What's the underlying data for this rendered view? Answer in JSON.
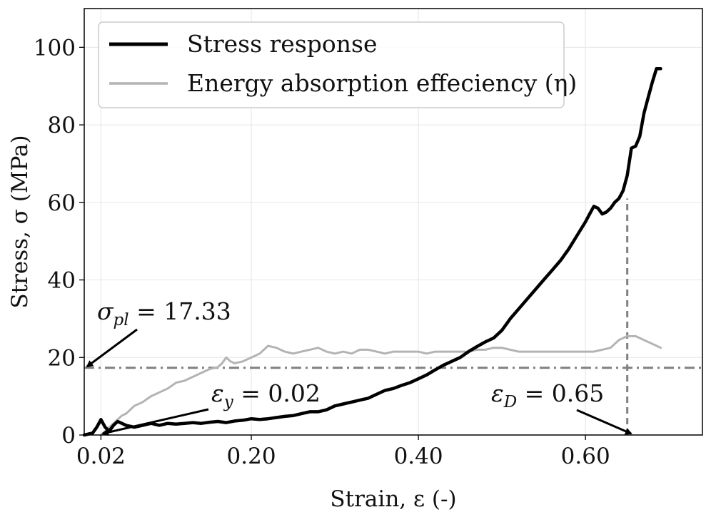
{
  "chart_data": {
    "type": "line",
    "xlabel": "Strain, ε (-)",
    "ylabel": "Stress, σ (MPa)",
    "xlim": [
      0.0,
      0.74
    ],
    "ylim": [
      0,
      110
    ],
    "x_ticks": [
      0.02,
      0.2,
      0.4,
      0.6
    ],
    "x_tick_labels": [
      "0.02",
      "0.20",
      "0.40",
      "0.60"
    ],
    "y_ticks": [
      0,
      20,
      40,
      60,
      80,
      100
    ],
    "y_tick_labels": [
      "0",
      "20",
      "40",
      "60",
      "80",
      "100"
    ],
    "grid": true,
    "legend": {
      "position": "top-left"
    },
    "series": [
      {
        "name": "Stress response",
        "color": "#000000",
        "x": [
          0.0,
          0.01,
          0.015,
          0.02,
          0.025,
          0.03,
          0.035,
          0.04,
          0.045,
          0.05,
          0.06,
          0.07,
          0.08,
          0.09,
          0.1,
          0.11,
          0.12,
          0.13,
          0.14,
          0.15,
          0.16,
          0.17,
          0.18,
          0.19,
          0.2,
          0.21,
          0.22,
          0.23,
          0.24,
          0.25,
          0.26,
          0.27,
          0.28,
          0.29,
          0.3,
          0.31,
          0.32,
          0.33,
          0.34,
          0.35,
          0.36,
          0.37,
          0.38,
          0.39,
          0.4,
          0.41,
          0.42,
          0.43,
          0.44,
          0.45,
          0.46,
          0.47,
          0.48,
          0.49,
          0.5,
          0.51,
          0.52,
          0.53,
          0.54,
          0.55,
          0.56,
          0.57,
          0.58,
          0.59,
          0.6,
          0.605,
          0.61,
          0.615,
          0.62,
          0.625,
          0.63,
          0.635,
          0.64,
          0.645,
          0.65,
          0.655,
          0.66,
          0.665,
          0.67,
          0.675,
          0.68,
          0.685,
          0.69
        ],
        "values": [
          0.0,
          0.5,
          2.0,
          4.0,
          2.0,
          1.0,
          2.5,
          3.5,
          3.0,
          2.5,
          2.0,
          2.5,
          3.0,
          2.5,
          3.0,
          2.8,
          3.0,
          3.2,
          3.0,
          3.3,
          3.5,
          3.2,
          3.6,
          3.8,
          4.2,
          4.0,
          4.2,
          4.5,
          4.8,
          5.0,
          5.5,
          6.0,
          6.0,
          6.5,
          7.5,
          8.0,
          8.5,
          9.0,
          9.5,
          10.5,
          11.5,
          12.0,
          12.8,
          13.5,
          14.5,
          15.5,
          16.8,
          18.0,
          19.0,
          20.0,
          21.5,
          22.8,
          24.0,
          25.0,
          27.0,
          30.0,
          32.5,
          35.0,
          37.5,
          40.0,
          42.5,
          45.0,
          48.0,
          51.5,
          55.0,
          57.0,
          59.0,
          58.5,
          57.0,
          57.5,
          58.5,
          60.0,
          61.0,
          63.0,
          67.0,
          74.0,
          74.5,
          77.0,
          83.0,
          87.0,
          91.0,
          94.5,
          94.5
        ]
      },
      {
        "name": "Energy absorption effeciency (η)",
        "color": "#b3b3b3",
        "x": [
          0.02,
          0.025,
          0.03,
          0.035,
          0.04,
          0.045,
          0.05,
          0.055,
          0.06,
          0.07,
          0.08,
          0.09,
          0.1,
          0.11,
          0.12,
          0.13,
          0.14,
          0.15,
          0.16,
          0.165,
          0.17,
          0.175,
          0.18,
          0.19,
          0.2,
          0.21,
          0.22,
          0.23,
          0.24,
          0.25,
          0.26,
          0.27,
          0.28,
          0.29,
          0.3,
          0.31,
          0.32,
          0.33,
          0.34,
          0.35,
          0.36,
          0.37,
          0.38,
          0.39,
          0.4,
          0.41,
          0.42,
          0.43,
          0.44,
          0.45,
          0.46,
          0.47,
          0.48,
          0.49,
          0.5,
          0.51,
          0.52,
          0.53,
          0.54,
          0.55,
          0.56,
          0.57,
          0.58,
          0.59,
          0.6,
          0.61,
          0.62,
          0.63,
          0.64,
          0.65,
          0.66,
          0.67,
          0.68,
          0.69
        ],
        "values": [
          0.0,
          1.0,
          2.0,
          3.0,
          4.0,
          5.0,
          5.5,
          6.5,
          7.5,
          8.5,
          10.0,
          11.0,
          12.0,
          13.5,
          14.0,
          15.0,
          16.0,
          17.0,
          17.5,
          18.5,
          20.0,
          19.0,
          18.5,
          19.0,
          20.0,
          21.0,
          23.0,
          22.5,
          21.5,
          21.0,
          21.5,
          22.0,
          22.5,
          21.5,
          21.0,
          21.5,
          21.0,
          22.0,
          22.0,
          21.5,
          21.0,
          21.5,
          21.5,
          21.5,
          21.5,
          21.0,
          21.5,
          21.5,
          21.5,
          21.5,
          21.5,
          22.0,
          22.0,
          22.5,
          22.5,
          22.0,
          21.5,
          21.5,
          21.5,
          21.5,
          21.5,
          21.5,
          21.5,
          21.5,
          21.5,
          21.5,
          22.0,
          22.5,
          24.5,
          25.5,
          25.5,
          24.5,
          23.5,
          22.5
        ]
      }
    ],
    "reference_lines": [
      {
        "name": "plateau-stress-line",
        "orientation": "horizontal",
        "value": 17.33,
        "style": "dash-dot",
        "color": "#808080"
      },
      {
        "name": "densification-strain-line",
        "orientation": "vertical",
        "value": 0.65,
        "y_to": 61,
        "style": "dashed",
        "color": "#808080"
      }
    ],
    "annotations": [
      {
        "name": "sigma-pl-annotation",
        "symbol": "σ",
        "sub": "pl",
        "rest": " = 17.33",
        "target": [
          0.0,
          17.33
        ]
      },
      {
        "name": "eps-y-annotation",
        "symbol": "ε",
        "sub": "y",
        "rest": " = 0.02",
        "target": [
          0.02,
          0.0
        ]
      },
      {
        "name": "eps-d-annotation",
        "symbol": "ε",
        "sub": "D",
        "rest": " = 0.65",
        "target": [
          0.65,
          0.0
        ]
      }
    ]
  }
}
